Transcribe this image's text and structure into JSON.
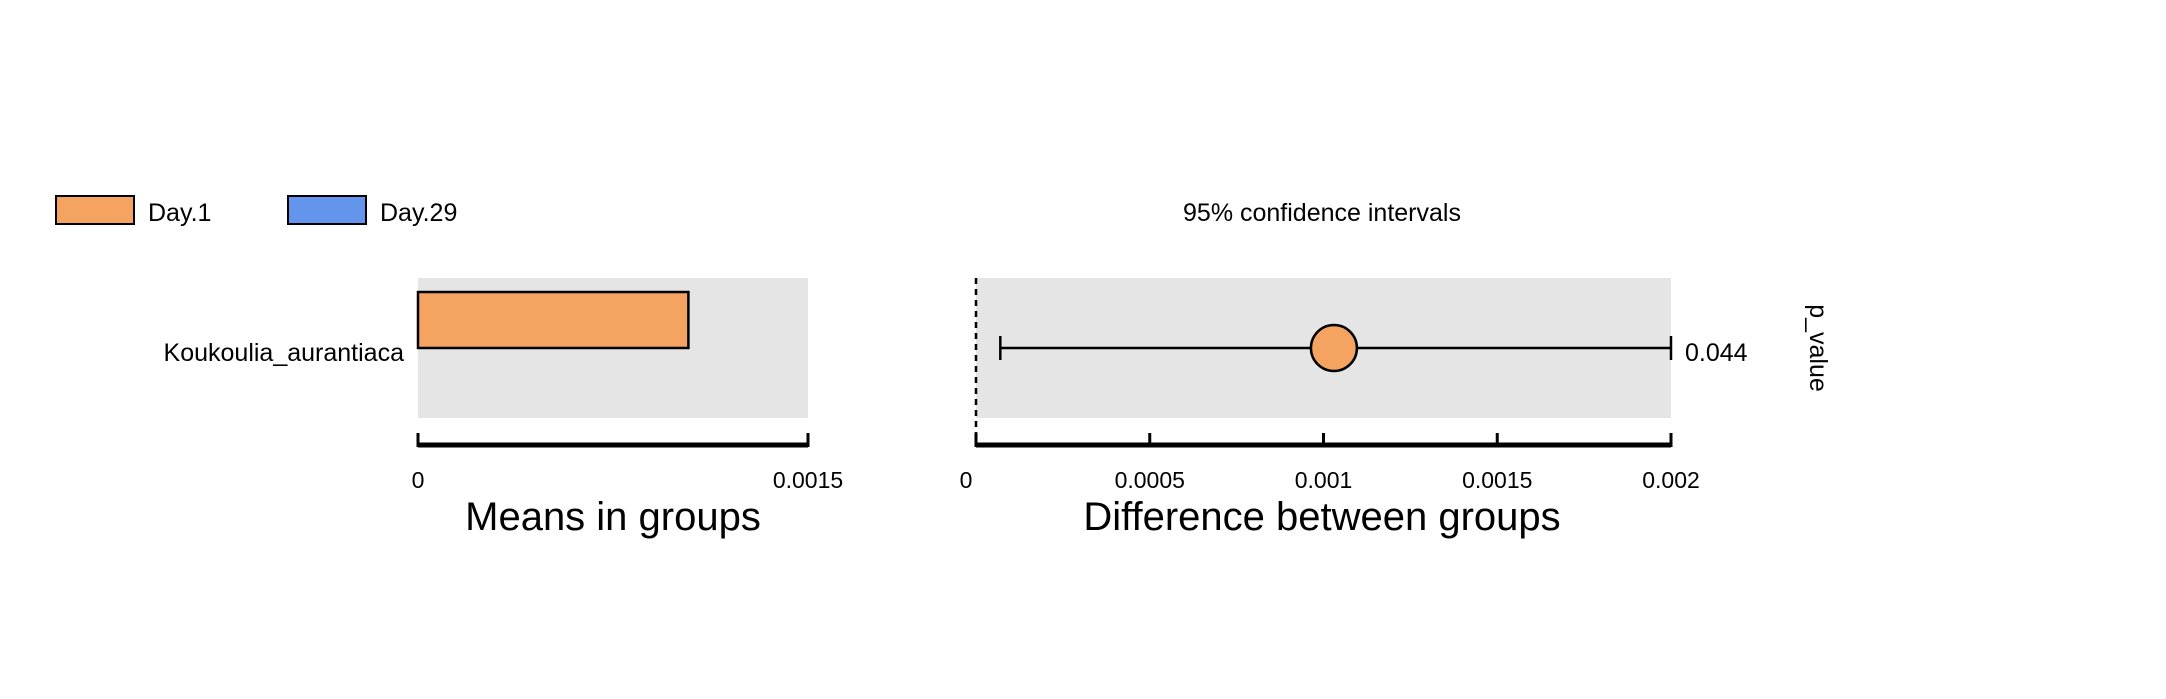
{
  "colors": {
    "day1": "#F4A460",
    "day29": "#6495ED",
    "panel_bg": "#E5E5E5"
  },
  "legend": {
    "items": [
      {
        "label": "Day.1",
        "color": "#F4A460"
      },
      {
        "label": "Day.29",
        "color": "#6495ED"
      }
    ]
  },
  "chart_data": [
    {
      "type": "bar",
      "orientation": "horizontal",
      "categories": [
        "Koukoulia_aurantiaca"
      ],
      "series": [
        {
          "name": "Day.1",
          "values": [
            0.00104
          ]
        },
        {
          "name": "Day.29",
          "values": [
            0
          ]
        }
      ],
      "xlabel": "Means in groups",
      "xlim": [
        0,
        0.0015
      ],
      "xticks": [
        "0",
        "0.0015"
      ]
    },
    {
      "type": "scatter",
      "subtitle": "95% confidence intervals",
      "categories": [
        "Koukoulia_aurantiaca"
      ],
      "points": [
        {
          "category": "Koukoulia_aurantiaca",
          "estimate": 0.00103,
          "ci_low": 7e-05,
          "ci_high": 0.002,
          "p_value": "0.044"
        }
      ],
      "xlabel": "Difference between groups",
      "xlim": [
        0,
        0.002
      ],
      "xticks": [
        "0",
        "0.0005",
        "0.001",
        "0.0015",
        "0.002"
      ],
      "side_label": "p_value",
      "reference_line": 0
    }
  ]
}
